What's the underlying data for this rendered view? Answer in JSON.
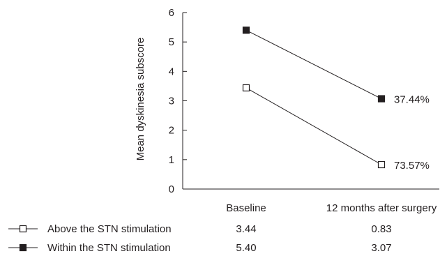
{
  "chart_data": {
    "type": "line",
    "categories": [
      "Baseline",
      "12 months after surgery"
    ],
    "ylabel": "Mean dyskinesia subscore",
    "ylim": [
      0,
      6
    ],
    "yticks": [
      "0",
      "1",
      "2",
      "3",
      "4",
      "5",
      "6"
    ],
    "grid": false,
    "series": [
      {
        "name": "Above the STN stimulation",
        "marker": "open-square",
        "color": "#231f20",
        "values": [
          3.44,
          0.83
        ],
        "value_labels": [
          "3.44",
          "0.83"
        ],
        "end_annotation": "73.57%"
      },
      {
        "name": "Within the STN stimulation",
        "marker": "filled-square",
        "color": "#231f20",
        "values": [
          5.4,
          3.07
        ],
        "value_labels": [
          "5.40",
          "3.07"
        ],
        "end_annotation": "37.44%"
      }
    ]
  }
}
